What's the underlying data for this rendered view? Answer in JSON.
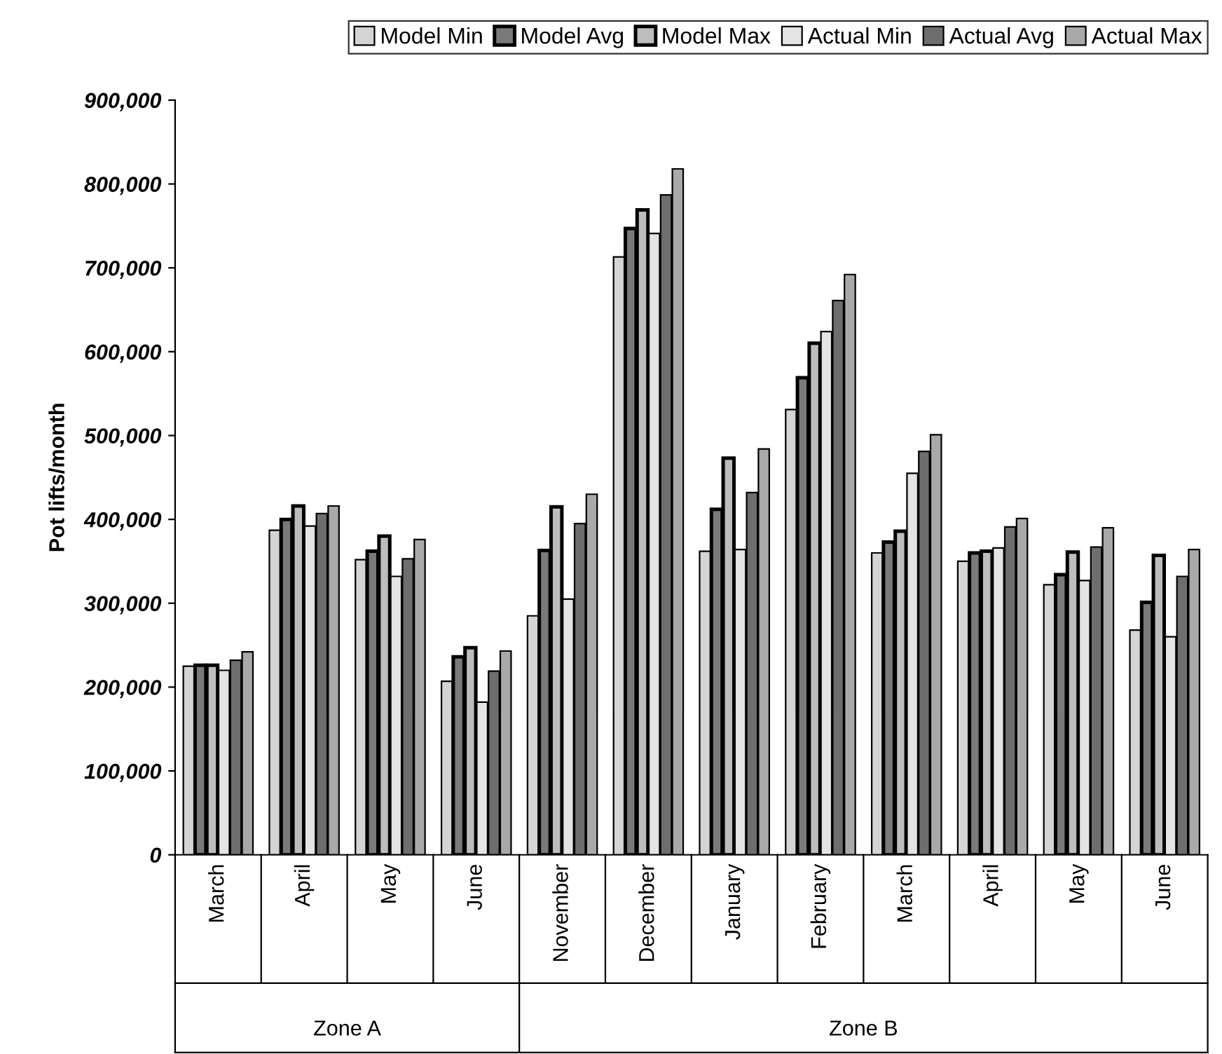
{
  "chart_data": {
    "type": "bar",
    "ylabel": "Pot lifts/month",
    "categories": [
      "March",
      "April",
      "May",
      "June",
      "November",
      "December",
      "January",
      "February",
      "March",
      "April",
      "May",
      "June"
    ],
    "series": [
      {
        "name": "Model Min",
        "color": "#d4d4d4",
        "values": [
          225000,
          387000,
          352000,
          207000,
          285000,
          713000,
          362000,
          531000,
          360000,
          350000,
          322000,
          268000
        ]
      },
      {
        "name": "Model Avg",
        "color": "#7a7a7a",
        "values": [
          226000,
          400000,
          362000,
          236000,
          363000,
          747000,
          412000,
          569000,
          373000,
          360000,
          334000,
          301000
        ]
      },
      {
        "name": "Model Max",
        "color": "#bdbdbd",
        "values": [
          226000,
          416000,
          380000,
          247000,
          415000,
          769000,
          473000,
          610000,
          386000,
          362000,
          361000,
          357000
        ]
      },
      {
        "name": "Actual Min",
        "color": "#e4e4e4",
        "values": [
          220000,
          392000,
          332000,
          182000,
          305000,
          741000,
          364000,
          624000,
          455000,
          366000,
          327000,
          260000
        ]
      },
      {
        "name": "Actual Avg",
        "color": "#6e6e6e",
        "values": [
          232000,
          407000,
          353000,
          219000,
          395000,
          787000,
          432000,
          661000,
          481000,
          391000,
          367000,
          332000
        ]
      },
      {
        "name": "Actual Max",
        "color": "#a9a9a9",
        "values": [
          242000,
          416000,
          376000,
          243000,
          430000,
          818000,
          484000,
          692000,
          501000,
          401000,
          390000,
          364000
        ]
      }
    ],
    "ylim": [
      0,
      900000
    ],
    "yticks": [
      {
        "value": 0,
        "label": "0"
      },
      {
        "value": 100000,
        "label": "100,000"
      },
      {
        "value": 200000,
        "label": "200,000"
      },
      {
        "value": 300000,
        "label": "300,000"
      },
      {
        "value": 400000,
        "label": "400,000"
      },
      {
        "value": 500000,
        "label": "500,000"
      },
      {
        "value": 600000,
        "label": "600,000"
      },
      {
        "value": 700000,
        "label": "700,000"
      },
      {
        "value": 800000,
        "label": "800,000"
      },
      {
        "value": 900000,
        "label": "900,000"
      }
    ],
    "annotations": [
      "Zone A",
      "Zone B"
    ],
    "grid": false,
    "legend": "top"
  }
}
